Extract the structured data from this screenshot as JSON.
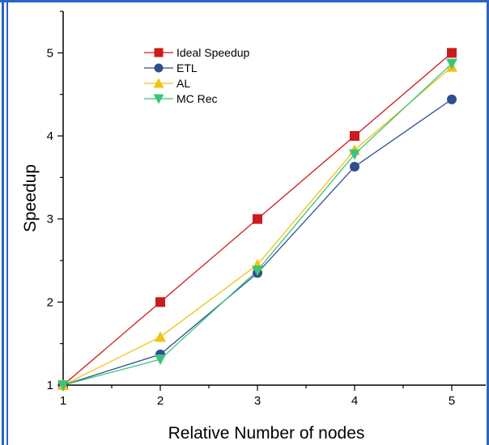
{
  "chart_data": {
    "type": "line",
    "title": "",
    "xlabel": "Relative Number of nodes",
    "ylabel": "Speedup",
    "x": [
      1,
      2,
      3,
      4,
      5
    ],
    "xlim": [
      1,
      5.35
    ],
    "ylim": [
      1,
      5.5
    ],
    "xticks": [
      1,
      2,
      3,
      4,
      5
    ],
    "yticks": [
      1,
      2,
      3,
      4,
      5
    ],
    "grid": false,
    "legend_position": "top-left",
    "series": [
      {
        "name": "Ideal Speedup",
        "color": "#cc1b1b",
        "marker": "square",
        "values": [
          1,
          2,
          3,
          4,
          5
        ]
      },
      {
        "name": "ETL",
        "color": "#2e4f8f",
        "marker": "circle",
        "values": [
          1,
          1.37,
          2.35,
          3.63,
          4.44
        ]
      },
      {
        "name": "AL",
        "color": "#f2c20f",
        "marker": "triangle-up",
        "values": [
          1,
          1.58,
          2.45,
          3.83,
          4.83
        ]
      },
      {
        "name": "MC Rec",
        "color": "#3cc47c",
        "marker": "triangle-down",
        "values": [
          1,
          1.31,
          2.38,
          3.78,
          4.87
        ]
      }
    ]
  }
}
